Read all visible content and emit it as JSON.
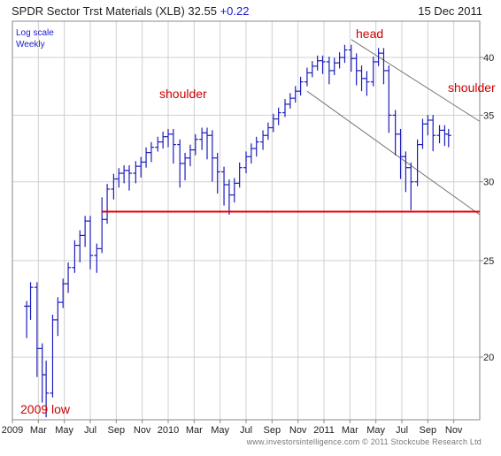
{
  "header": {
    "title": "SPDR Sector Trst Materials (XLB)",
    "price": "32.55",
    "change": "+0.22",
    "date": "15 Dec 2011"
  },
  "footer": {
    "credit": "www.investorsintelligence.com  © 2011 Stockcube Research Ltd"
  },
  "chart_data": {
    "type": "ohlc",
    "title": "SPDR Sector Trst Materials (XLB)",
    "scale_note": "Log scale",
    "period_note": "Weekly",
    "yscale": "log",
    "ylim": [
      17.3,
      43.5
    ],
    "y_ticks": [
      20,
      25,
      30,
      35,
      40
    ],
    "x_ticks": [
      "2009",
      "Mar",
      "May",
      "Jul",
      "Sep",
      "Nov",
      "2010",
      "Mar",
      "May",
      "Jul",
      "Sep",
      "Nov",
      "2011",
      "Mar",
      "May",
      "Jul",
      "Sep",
      "Nov"
    ],
    "x_range_months": [
      0,
      36
    ],
    "grid": true,
    "series_color": "#1c1cbe",
    "lows_close": [
      [
        1.1,
        20.9,
        22.5
      ],
      [
        1.4,
        21.8,
        23.5
      ],
      [
        1.9,
        19.1,
        20.4
      ],
      [
        2.3,
        18.0,
        19.2
      ],
      [
        2.6,
        17.4,
        18.4
      ],
      [
        3.1,
        19.6,
        21.8
      ],
      [
        3.5,
        21.0,
        22.7
      ],
      [
        3.9,
        22.4,
        23.7
      ],
      [
        4.3,
        23.2,
        24.6
      ],
      [
        4.8,
        24.3,
        25.9
      ],
      [
        5.2,
        24.9,
        26.5
      ],
      [
        5.6,
        25.8,
        27.4
      ],
      [
        6.0,
        24.5,
        25.3
      ],
      [
        6.5,
        24.3,
        25.7
      ],
      [
        6.9,
        25.6,
        27.5
      ],
      [
        7.3,
        28.6,
        29.5
      ],
      [
        7.8,
        28.8,
        30.2
      ],
      [
        8.2,
        29.6,
        30.6
      ],
      [
        8.6,
        29.9,
        30.8
      ],
      [
        9.0,
        29.4,
        30.6
      ],
      [
        9.5,
        29.9,
        31.1
      ],
      [
        9.9,
        30.3,
        31.4
      ],
      [
        10.3,
        31.0,
        32.1
      ],
      [
        10.7,
        31.4,
        32.5
      ],
      [
        11.2,
        32.2,
        32.9
      ],
      [
        11.6,
        32.4,
        33.3
      ],
      [
        12.0,
        32.5,
        33.5
      ],
      [
        12.4,
        31.3,
        32.7
      ],
      [
        12.9,
        29.6,
        31.3
      ],
      [
        13.3,
        30.1,
        31.7
      ],
      [
        13.7,
        31.1,
        32.3
      ],
      [
        14.1,
        31.9,
        33.1
      ],
      [
        14.6,
        32.3,
        33.6
      ],
      [
        15.0,
        31.6,
        33.4
      ],
      [
        15.4,
        30.0,
        31.7
      ],
      [
        15.8,
        29.2,
        30.7
      ],
      [
        16.3,
        28.4,
        29.8
      ],
      [
        16.7,
        27.8,
        29.1
      ],
      [
        17.1,
        28.6,
        29.9
      ],
      [
        17.5,
        29.7,
        31.0
      ],
      [
        18.0,
        30.6,
        31.8
      ],
      [
        18.4,
        31.3,
        32.4
      ],
      [
        18.8,
        31.8,
        32.9
      ],
      [
        19.3,
        32.3,
        33.4
      ],
      [
        19.7,
        33.1,
        34.0
      ],
      [
        20.1,
        33.7,
        34.7
      ],
      [
        20.5,
        34.2,
        35.2
      ],
      [
        21.0,
        35.0,
        35.9
      ],
      [
        21.4,
        35.6,
        36.4
      ],
      [
        21.8,
        36.2,
        37.0
      ],
      [
        22.2,
        37.0,
        37.8
      ],
      [
        22.7,
        37.6,
        38.6
      ],
      [
        23.1,
        38.3,
        39.2
      ],
      [
        23.5,
        38.9,
        39.7
      ],
      [
        23.9,
        38.5,
        39.6
      ],
      [
        24.4,
        37.6,
        38.8
      ],
      [
        24.8,
        38.4,
        39.5
      ],
      [
        25.2,
        39.0,
        40.0
      ],
      [
        25.6,
        39.5,
        40.7
      ],
      [
        26.1,
        38.7,
        39.9
      ],
      [
        26.5,
        37.5,
        38.8
      ],
      [
        26.9,
        37.0,
        38.1
      ],
      [
        27.3,
        36.6,
        37.8
      ],
      [
        27.8,
        38.3,
        39.6
      ],
      [
        28.2,
        39.4,
        40.4
      ],
      [
        28.6,
        37.6,
        38.8
      ],
      [
        29.0,
        33.6,
        35.0
      ],
      [
        29.5,
        31.9,
        33.5
      ],
      [
        29.9,
        30.2,
        31.8
      ],
      [
        30.3,
        29.3,
        31.0
      ],
      [
        30.7,
        28.1,
        30.0
      ],
      [
        31.2,
        30.8,
        32.7
      ],
      [
        31.6,
        32.6,
        34.3
      ],
      [
        32.0,
        33.4,
        34.6
      ],
      [
        32.4,
        32.2,
        33.4
      ],
      [
        32.9,
        32.8,
        33.8
      ],
      [
        33.3,
        32.6,
        33.5
      ],
      [
        33.6,
        32.5,
        33.4
      ]
    ],
    "pattern_labels": {
      "left_shoulder": "shoulder",
      "head": "head",
      "right_shoulder": "shoulder",
      "low_label": "2009 low"
    },
    "neckline": {
      "price": 28.0,
      "from_month": 6.9,
      "to_month": 36,
      "color": "#e00000"
    },
    "channel_upper": [
      [
        26.1,
        41.7
      ],
      [
        36.0,
        34.5
      ]
    ],
    "channel_lower": [
      [
        22.7,
        37.0
      ],
      [
        36.0,
        27.8
      ]
    ],
    "channel_color": "#777777",
    "label_color": "#cc0000"
  }
}
